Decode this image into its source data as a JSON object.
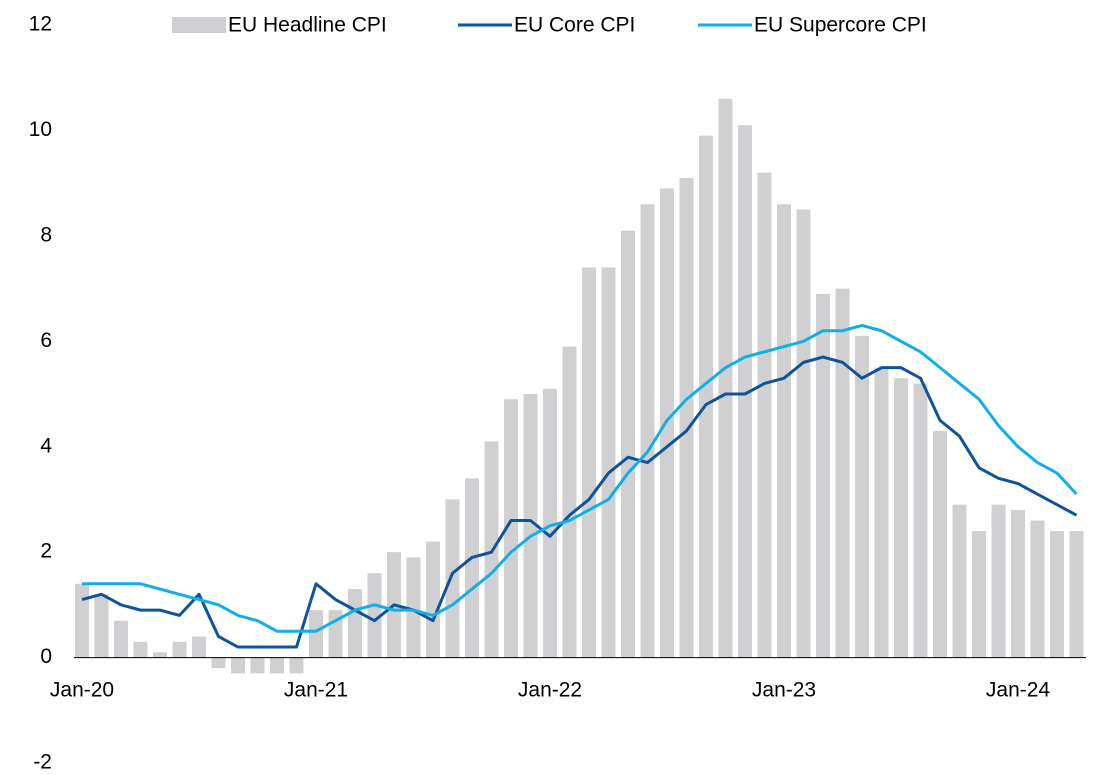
{
  "chart_data": {
    "type": "bar_line",
    "categories": [
      "Jan-20",
      null,
      null,
      null,
      null,
      null,
      null,
      null,
      null,
      null,
      null,
      null,
      "Jan-21",
      null,
      null,
      null,
      null,
      null,
      null,
      null,
      null,
      null,
      null,
      null,
      "Jan-22",
      null,
      null,
      null,
      null,
      null,
      null,
      null,
      null,
      null,
      null,
      null,
      "Jan-23",
      null,
      null,
      null,
      null,
      null,
      null,
      null,
      null,
      null,
      null,
      null,
      "Jan-24",
      null,
      null,
      null
    ],
    "series": [
      {
        "name": "EU Headline CPI",
        "kind": "bar",
        "color": "#d0d0d2",
        "values": [
          1.4,
          1.2,
          0.7,
          0.3,
          0.1,
          0.3,
          0.4,
          -0.2,
          -0.3,
          -0.3,
          -0.3,
          -0.3,
          0.9,
          0.9,
          1.3,
          1.6,
          2.0,
          1.9,
          2.2,
          3.0,
          3.4,
          4.1,
          4.9,
          5.0,
          5.1,
          5.9,
          7.4,
          7.4,
          8.1,
          8.6,
          8.9,
          9.1,
          9.9,
          10.6,
          10.1,
          9.2,
          8.6,
          8.5,
          6.9,
          7.0,
          6.1,
          5.5,
          5.3,
          5.2,
          4.3,
          2.9,
          2.4,
          2.9,
          2.8,
          2.6,
          2.4,
          2.4
        ]
      },
      {
        "name": "EU Core CPI",
        "kind": "line",
        "color": "#0f5499",
        "values": [
          1.1,
          1.2,
          1.0,
          0.9,
          0.9,
          0.8,
          1.2,
          0.4,
          0.2,
          0.2,
          0.2,
          0.2,
          1.4,
          1.1,
          0.9,
          0.7,
          1.0,
          0.9,
          0.7,
          1.6,
          1.9,
          2.0,
          2.6,
          2.6,
          2.3,
          2.7,
          3.0,
          3.5,
          3.8,
          3.7,
          4.0,
          4.3,
          4.8,
          5.0,
          5.0,
          5.2,
          5.3,
          5.6,
          5.7,
          5.6,
          5.3,
          5.5,
          5.5,
          5.3,
          4.5,
          4.2,
          3.6,
          3.4,
          3.3,
          3.1,
          2.9,
          2.7
        ]
      },
      {
        "name": "EU Supercore CPI",
        "kind": "line",
        "color": "#12aee7",
        "values": [
          1.4,
          1.4,
          1.4,
          1.4,
          1.3,
          1.2,
          1.1,
          1.0,
          0.8,
          0.7,
          0.5,
          0.5,
          0.5,
          0.7,
          0.9,
          1.0,
          0.9,
          0.9,
          0.8,
          1.0,
          1.3,
          1.6,
          2.0,
          2.3,
          2.5,
          2.6,
          2.8,
          3.0,
          3.5,
          3.9,
          4.5,
          4.9,
          5.2,
          5.5,
          5.7,
          5.8,
          5.9,
          6.0,
          6.2,
          6.2,
          6.3,
          6.2,
          6.0,
          5.8,
          5.5,
          5.2,
          4.9,
          4.4,
          4.0,
          3.7,
          3.5,
          3.1
        ]
      }
    ],
    "ylim": [
      -2,
      12
    ],
    "yticks": [
      -2,
      0,
      2,
      4,
      6,
      8,
      10,
      12
    ],
    "grid": false,
    "legend": "top"
  }
}
